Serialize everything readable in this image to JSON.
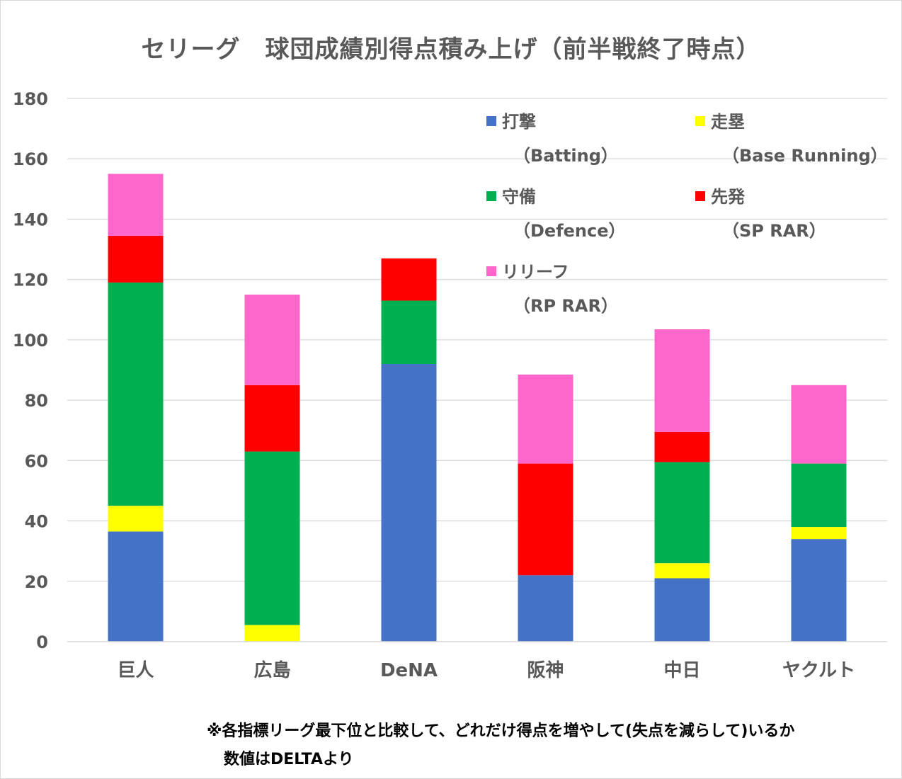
{
  "chart_data": {
    "type": "bar",
    "stacked": true,
    "title": "セリーグ　球団成績別得点積み上げ（前半戦終了時点）",
    "categories": [
      "巨人",
      "広島",
      "DeNA",
      "阪神",
      "中日",
      "ヤクルト"
    ],
    "series": [
      {
        "name": "打撃",
        "sub": "（Batting）",
        "color": "#4472C4",
        "values": [
          36.5,
          0,
          92,
          22,
          21,
          34
        ]
      },
      {
        "name": "走塁",
        "sub": "（Base Running）",
        "color": "#FFFF00",
        "values": [
          8.5,
          5.5,
          0,
          0,
          5,
          4
        ]
      },
      {
        "name": "守備",
        "sub": "（Defence）",
        "color": "#00B050",
        "values": [
          74,
          57.5,
          21,
          0,
          33.5,
          21
        ]
      },
      {
        "name": "先発",
        "sub": "（SP RAR）",
        "color": "#FF0000",
        "values": [
          15.5,
          22,
          14,
          37,
          10,
          0
        ]
      },
      {
        "name": "リリーフ",
        "sub": "（RP RAR）",
        "color": "#FF66CC",
        "values": [
          20.5,
          30,
          0,
          29.5,
          34,
          26
        ]
      }
    ],
    "ylim": [
      0,
      180
    ],
    "yticks": [
      0,
      20,
      40,
      60,
      80,
      100,
      120,
      140,
      160,
      180
    ],
    "xlabel": "",
    "ylabel": "",
    "grid": true,
    "legend_position": "top-right"
  },
  "notes": {
    "line1": "※各指標リーグ最下位と比較して、どれだけ得点を増やして(失点を減らして)いるか",
    "line2": "数値はDELTAより"
  }
}
